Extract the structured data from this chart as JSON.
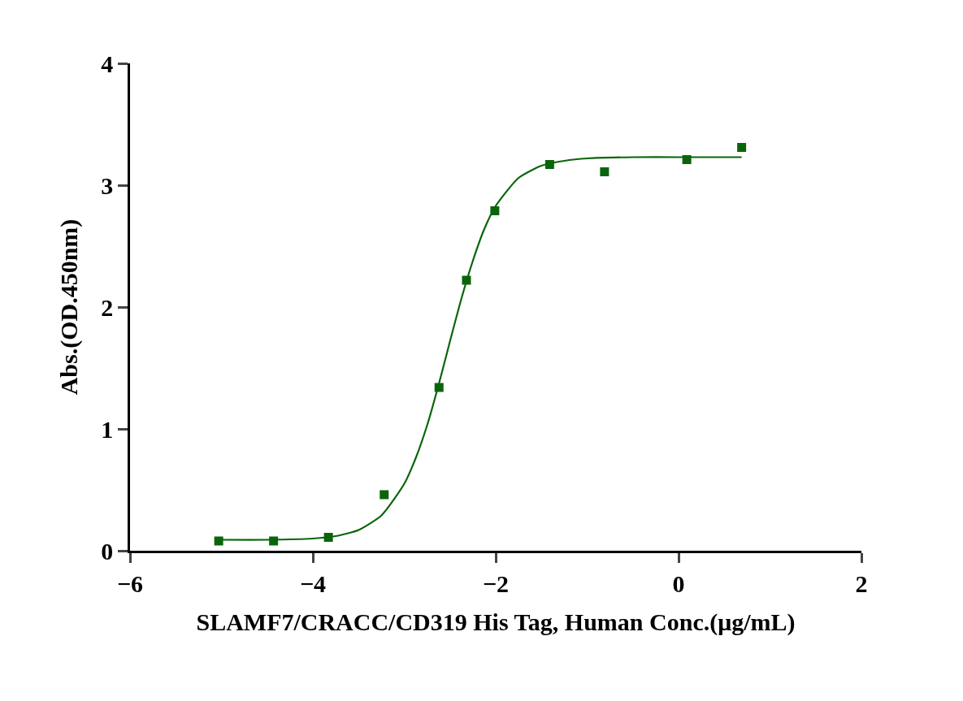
{
  "chart_data": {
    "type": "scatter",
    "xlabel": "SLAMF7/CRACC/CD319 His Tag, Human Conc.(μg/mL)",
    "ylabel": "Abs.(OD.450nm)",
    "xlim": [
      -6,
      2
    ],
    "xticks": [
      -6,
      -4,
      -2,
      0,
      2
    ],
    "ylim": [
      0,
      4
    ],
    "yticks": [
      0,
      1,
      2,
      3,
      4
    ],
    "series": [
      {
        "marker": "square",
        "color": "#0a650a",
        "x": [
          -5.03,
          -4.43,
          -3.83,
          -3.22,
          -2.62,
          -2.32,
          -2.01,
          -1.41,
          -0.81,
          0.09,
          0.69
        ],
        "values": [
          0.08,
          0.08,
          0.11,
          0.46,
          1.34,
          2.22,
          2.79,
          3.17,
          3.11,
          3.21,
          3.31
        ]
      },
      {
        "type": "line",
        "marker": "none",
        "line_style": "solid",
        "color": "#0a650a",
        "x": [
          -5.03,
          -4.5,
          -4.0,
          -3.75,
          -3.5,
          -3.25,
          -3.0,
          -2.875,
          -2.75,
          -2.625,
          -2.5,
          -2.375,
          -2.25,
          -2.125,
          -2.0,
          -1.75,
          -1.5,
          -1.25,
          -1.0,
          -0.5,
          0.0,
          0.69
        ],
        "values": [
          0.09,
          0.09,
          0.1,
          0.12,
          0.17,
          0.29,
          0.55,
          0.76,
          1.03,
          1.36,
          1.72,
          2.07,
          2.38,
          2.64,
          2.83,
          3.06,
          3.16,
          3.2,
          3.22,
          3.23,
          3.23,
          3.23
        ]
      }
    ]
  }
}
